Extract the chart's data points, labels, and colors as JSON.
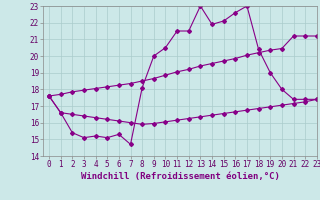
{
  "title": "",
  "xlabel": "Windchill (Refroidissement éolien,°C)",
  "ylabel": "",
  "xlim": [
    -0.5,
    23
  ],
  "ylim": [
    14,
    23
  ],
  "xticks": [
    0,
    1,
    2,
    3,
    4,
    5,
    6,
    7,
    8,
    9,
    10,
    11,
    12,
    13,
    14,
    15,
    16,
    17,
    18,
    19,
    20,
    21,
    22,
    23
  ],
  "yticks": [
    14,
    15,
    16,
    17,
    18,
    19,
    20,
    21,
    22,
    23
  ],
  "bg_color": "#cce8e8",
  "grid_color": "#aacccc",
  "line_color": "#880088",
  "line1_x": [
    0,
    1,
    2,
    3,
    4,
    5,
    6,
    7,
    8,
    9,
    10,
    11,
    12,
    13,
    14,
    15,
    16,
    17,
    18,
    19,
    20,
    21,
    22,
    23
  ],
  "line1_y": [
    17.6,
    16.6,
    15.4,
    15.1,
    15.2,
    15.1,
    15.3,
    14.7,
    18.1,
    20.0,
    20.5,
    21.5,
    21.5,
    23.0,
    21.9,
    22.1,
    22.6,
    23.0,
    20.4,
    19.0,
    18.0,
    17.4,
    17.4,
    17.4
  ],
  "line2_x": [
    0,
    1,
    2,
    3,
    4,
    5,
    6,
    7,
    8,
    9,
    10,
    11,
    12,
    13,
    14,
    15,
    16,
    17,
    18,
    19,
    20,
    21,
    22,
    23
  ],
  "line2_y": [
    17.6,
    17.7,
    17.85,
    17.95,
    18.05,
    18.15,
    18.25,
    18.35,
    18.5,
    18.65,
    18.85,
    19.05,
    19.2,
    19.4,
    19.55,
    19.7,
    19.85,
    20.05,
    20.2,
    20.35,
    20.45,
    21.2,
    21.2,
    21.2
  ],
  "line3_x": [
    0,
    1,
    2,
    3,
    4,
    5,
    6,
    7,
    8,
    9,
    10,
    11,
    12,
    13,
    14,
    15,
    16,
    17,
    18,
    19,
    20,
    21,
    22,
    23
  ],
  "line3_y": [
    17.6,
    16.6,
    16.5,
    16.4,
    16.3,
    16.2,
    16.1,
    16.0,
    15.9,
    15.95,
    16.05,
    16.15,
    16.25,
    16.35,
    16.45,
    16.55,
    16.65,
    16.75,
    16.85,
    16.95,
    17.05,
    17.15,
    17.25,
    17.4
  ],
  "marker": "D",
  "markersize": 2.0,
  "linewidth": 0.8,
  "tick_fontsize": 5.5,
  "xlabel_fontsize": 6.5
}
